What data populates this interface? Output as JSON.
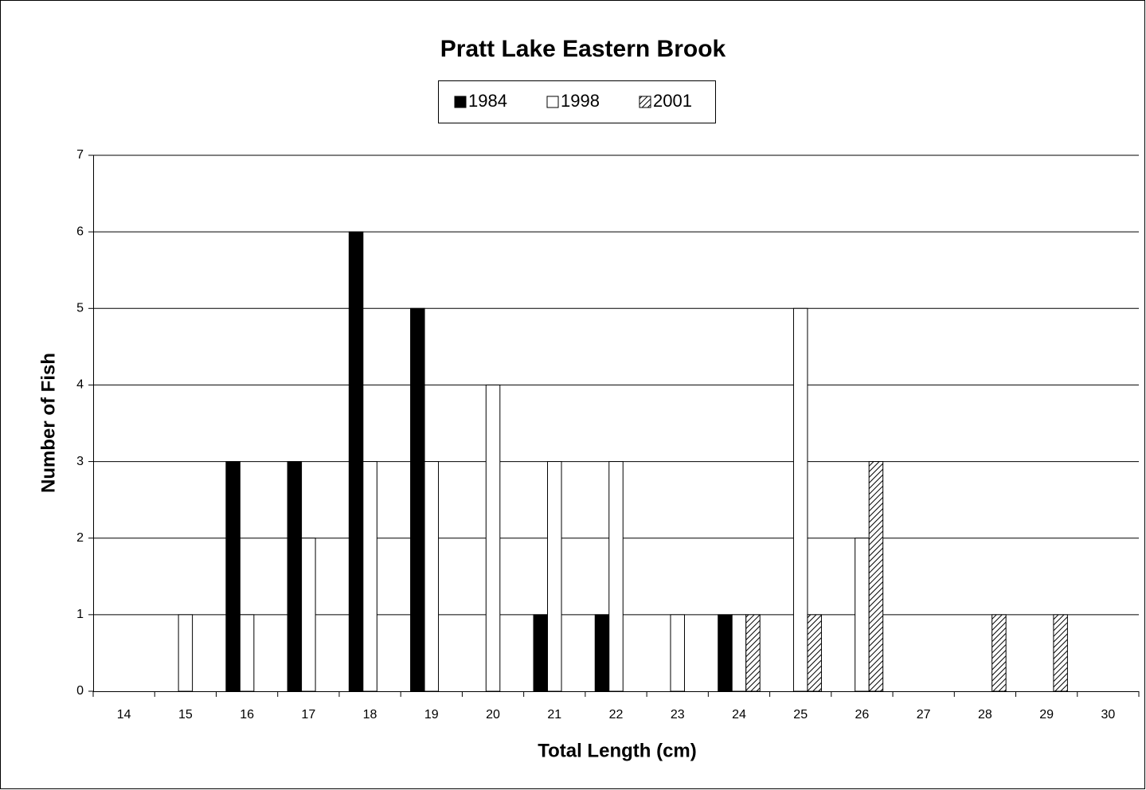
{
  "chart_data": {
    "type": "bar",
    "title": "Pratt Lake Eastern Brook",
    "x_label": "Total Length (cm)",
    "y_label": "Number of Fish",
    "categories": [
      "14",
      "15",
      "16",
      "17",
      "18",
      "19",
      "20",
      "21",
      "22",
      "23",
      "24",
      "25",
      "26",
      "27",
      "28",
      "29",
      "30"
    ],
    "series": [
      {
        "name": "1984",
        "color": "#000000",
        "fill": "solid",
        "values": [
          0,
          0,
          3,
          3,
          6,
          5,
          0,
          1,
          1,
          0,
          1,
          0,
          0,
          0,
          0,
          0,
          0
        ]
      },
      {
        "name": "1998",
        "color": "#ffffff",
        "fill": "solid",
        "values": [
          0,
          1,
          1,
          2,
          3,
          3,
          4,
          3,
          3,
          1,
          1,
          5,
          2,
          0,
          0,
          0,
          0
        ]
      },
      {
        "name": "2001",
        "color": "#000000",
        "fill": "hatch",
        "values": [
          0,
          0,
          0,
          0,
          0,
          0,
          0,
          0,
          0,
          0,
          1,
          1,
          3,
          0,
          1,
          1,
          0
        ]
      }
    ],
    "ylim": [
      0,
      7
    ],
    "yticks": [
      0,
      1,
      2,
      3,
      4,
      5,
      6,
      7
    ],
    "grid": true,
    "legend": "top"
  }
}
